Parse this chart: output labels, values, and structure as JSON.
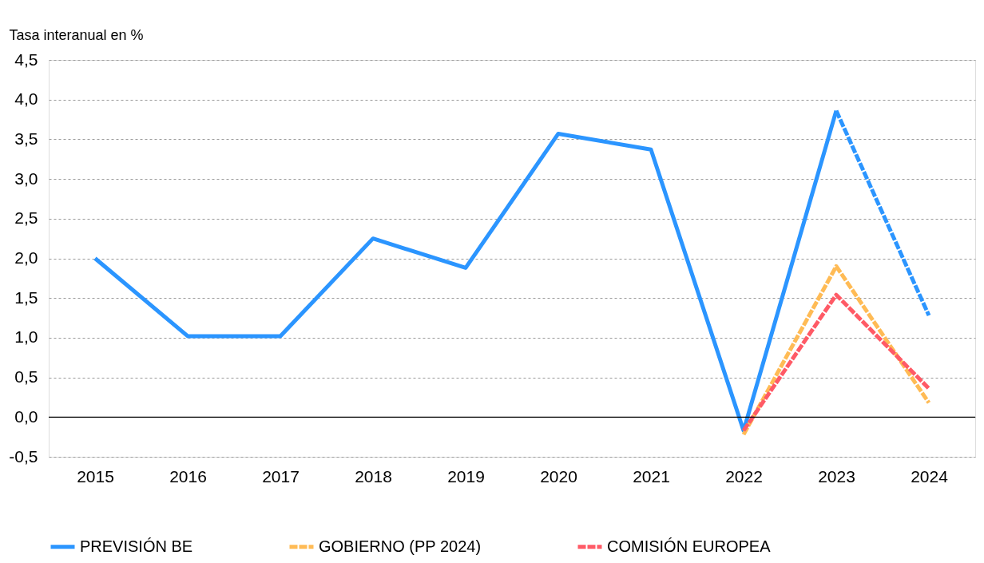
{
  "chart_data": {
    "type": "line",
    "ylabel": "Tasa interanual en %",
    "categories": [
      "2015",
      "2016",
      "2017",
      "2018",
      "2019",
      "2020",
      "2021",
      "2022",
      "2023",
      "2024"
    ],
    "series": [
      {
        "name": "PREVISIÓN BE",
        "color": "#2b95ff",
        "line_style": "solid",
        "values": [
          2.0,
          1.02,
          1.02,
          2.25,
          1.88,
          3.57,
          3.37,
          -0.17,
          3.86,
          null
        ]
      },
      {
        "color": "#2b95ff",
        "line_style": "dashed",
        "values": [
          null,
          null,
          null,
          null,
          null,
          null,
          null,
          null,
          3.86,
          1.28
        ]
      },
      {
        "name": "GOBIERNO (PP 2024)",
        "color": "#ffbb55",
        "line_style": "dashed",
        "values": [
          null,
          null,
          null,
          null,
          null,
          null,
          null,
          -0.22,
          1.9,
          0.18
        ]
      },
      {
        "name": "COMISIÓN EUROPEA",
        "color": "#ff5a66",
        "line_style": "dashed",
        "values": [
          null,
          null,
          null,
          null,
          null,
          null,
          null,
          -0.17,
          1.54,
          0.36
        ]
      }
    ],
    "ylim": [
      -0.5,
      4.5
    ],
    "yticks": [
      {
        "value": -0.5,
        "label": "-0,5"
      },
      {
        "value": 0,
        "label": "0,0"
      },
      {
        "value": 0.5,
        "label": "0,5"
      },
      {
        "value": 1,
        "label": "1,0"
      },
      {
        "value": 1.5,
        "label": "1,5"
      },
      {
        "value": 2,
        "label": "2,0"
      },
      {
        "value": 2.5,
        "label": "2,5"
      },
      {
        "value": 3,
        "label": "3,0"
      },
      {
        "value": 3.5,
        "label": "3,5"
      },
      {
        "value": 4,
        "label": "4,0"
      },
      {
        "value": 4.5,
        "label": "4,5"
      }
    ],
    "ref_lines": [
      {
        "axis": "y",
        "value": 0,
        "color": "#000000"
      }
    ],
    "grid": "y",
    "legend": "bottom"
  }
}
